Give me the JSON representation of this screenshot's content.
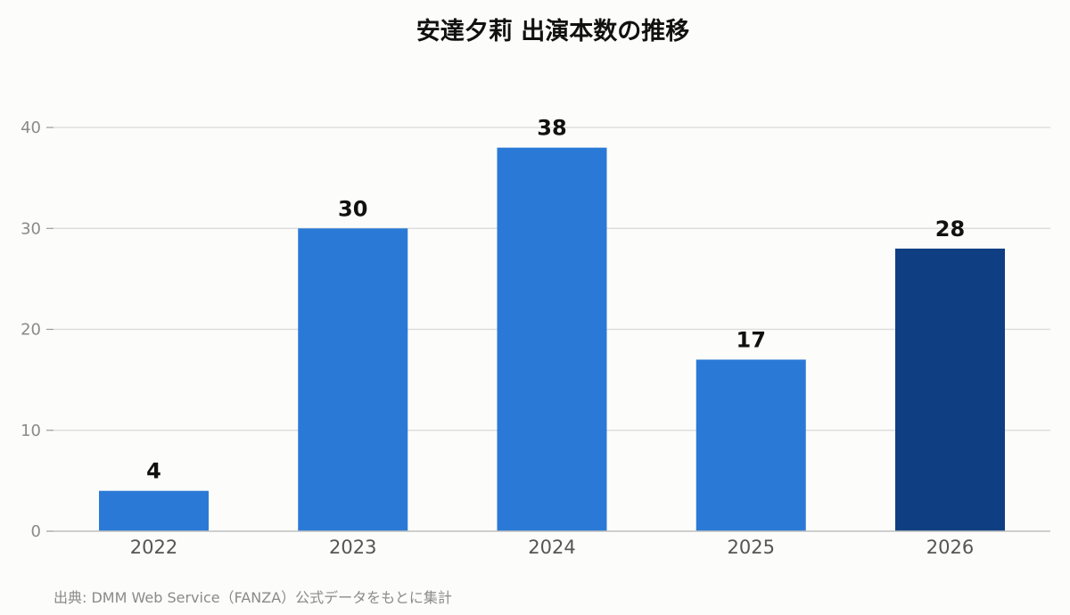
{
  "chart_data": {
    "type": "bar",
    "title": "安達夕莉 出演本数の推移",
    "categories": [
      "2022",
      "2023",
      "2024",
      "2025",
      "2026"
    ],
    "values": [
      4,
      30,
      38,
      17,
      28
    ],
    "data_labels": [
      "4",
      "30",
      "38",
      "17",
      "28"
    ],
    "ylim": [
      0,
      44
    ],
    "yticks": [
      0,
      10,
      20,
      30,
      40
    ],
    "ytick_labels": [
      "0",
      "10",
      "20",
      "30",
      "40"
    ],
    "xlabel": "",
    "ylabel": "",
    "grid": true,
    "legend": "none",
    "colors": {
      "bar": "#2b79d6",
      "highlight": "#0f3f82",
      "highlight_category": "2026"
    }
  },
  "source_note": "出典: DMM Web Service（FANZA）公式データをもとに集計"
}
